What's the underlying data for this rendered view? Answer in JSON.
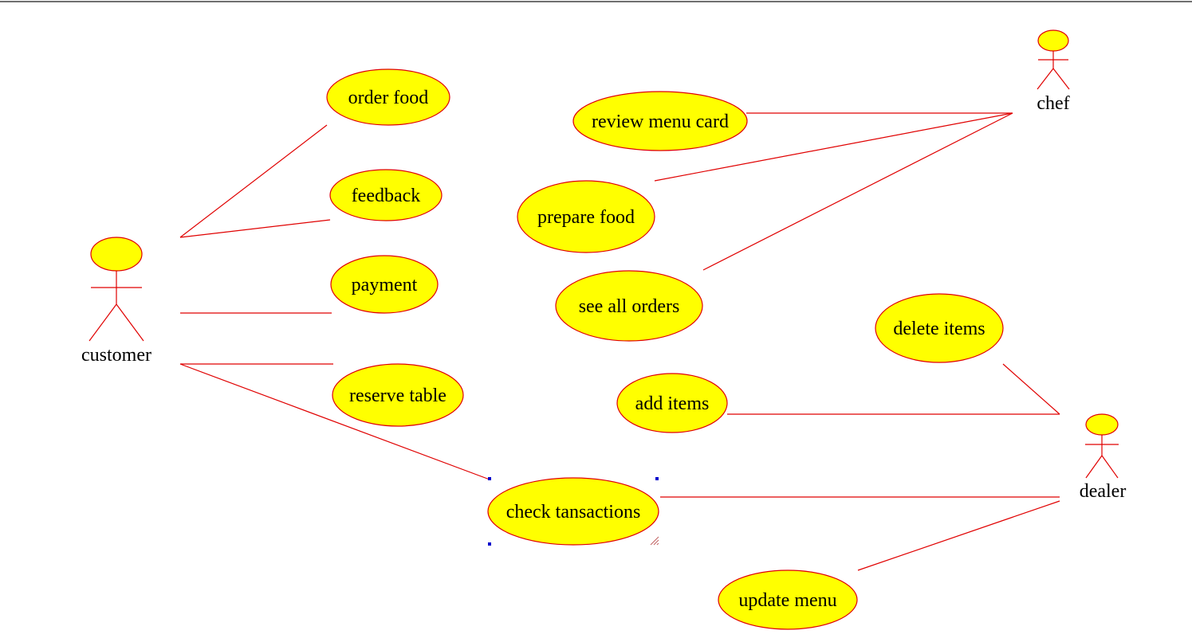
{
  "colors": {
    "ellipse_fill": "#ffff00",
    "stroke": "#e00000",
    "text": "#000000",
    "selection_handle": "#0000cc",
    "top_rule": "#6e6e6e"
  },
  "actors": {
    "customer": "customer",
    "chef": "chef",
    "dealer": "dealer"
  },
  "use_cases": {
    "order_food": "order food",
    "feedback": "feedback",
    "payment": "payment",
    "reserve_table": "reserve table",
    "check_transactions": "check tansactions",
    "review_menu_card": "review menu card",
    "prepare_food": "prepare food",
    "see_all_orders": "see all orders",
    "delete_items": "delete items",
    "add_items": "add items",
    "update_menu": "update menu"
  }
}
